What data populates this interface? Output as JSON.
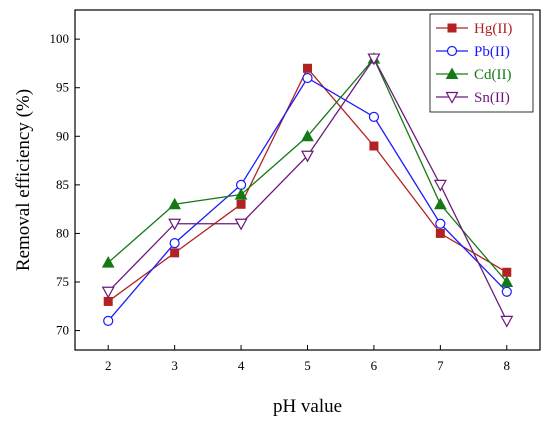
{
  "chart_data": {
    "type": "line",
    "title": "",
    "xlabel": "pH value",
    "ylabel": "Removal efficiency (%)",
    "x": [
      2,
      3,
      4,
      5,
      6,
      7,
      8
    ],
    "xlim": [
      1.5,
      8.5
    ],
    "ylim": [
      68,
      103
    ],
    "xticks": [
      2,
      3,
      4,
      5,
      6,
      7,
      8
    ],
    "yticks": [
      70,
      75,
      80,
      85,
      90,
      95,
      100
    ],
    "grid": false,
    "legend_position": "top-right",
    "series": [
      {
        "name": "Hg(II)",
        "color": "#b22222",
        "marker": "filled-square",
        "values": [
          73,
          78,
          83,
          97,
          89,
          80,
          76
        ]
      },
      {
        "name": "Pb(II)",
        "color": "#1a1aff",
        "marker": "open-circle",
        "values": [
          71,
          79,
          85,
          96,
          92,
          81,
          74
        ]
      },
      {
        "name": "Cd(II)",
        "color": "#157a15",
        "marker": "filled-triangle-up",
        "values": [
          77,
          83,
          84,
          90,
          98,
          83,
          75
        ]
      },
      {
        "name": "Sn(II)",
        "color": "#6a1b7a",
        "marker": "open-triangle-down",
        "values": [
          74,
          81,
          81,
          88,
          98,
          85,
          71
        ]
      }
    ]
  }
}
